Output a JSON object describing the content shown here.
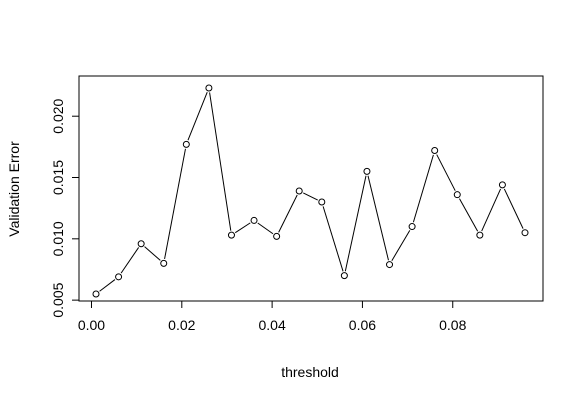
{
  "chart_data": {
    "type": "line",
    "title": "",
    "xlabel": "threshold",
    "ylabel": "Validation Error",
    "xlim": [
      0.001,
      0.096
    ],
    "ylim": [
      0.0055,
      0.0223
    ],
    "x_ticks": [
      0.0,
      0.02,
      0.04,
      0.06,
      0.08
    ],
    "x_tick_labels": [
      "0.00",
      "0.02",
      "0.04",
      "0.06",
      "0.08"
    ],
    "y_ticks": [
      0.005,
      0.01,
      0.015,
      0.02
    ],
    "y_tick_labels": [
      "0.005",
      "0.010",
      "0.015",
      "0.020"
    ],
    "grid": false,
    "legend": "none",
    "markers": "open-circle",
    "line_color": "#000000",
    "x": [
      0.001,
      0.006,
      0.011,
      0.016,
      0.021,
      0.026,
      0.031,
      0.036,
      0.041,
      0.046,
      0.051,
      0.056,
      0.061,
      0.066,
      0.071,
      0.076,
      0.081,
      0.086,
      0.091,
      0.096
    ],
    "series": [
      {
        "values": [
          0.0055,
          0.0069,
          0.0096,
          0.008,
          0.0177,
          0.0223,
          0.0103,
          0.0115,
          0.0102,
          0.0139,
          0.013,
          0.007,
          0.0155,
          0.0079,
          0.011,
          0.0172,
          0.0136,
          0.0103,
          0.0144,
          0.0105
        ]
      }
    ]
  }
}
